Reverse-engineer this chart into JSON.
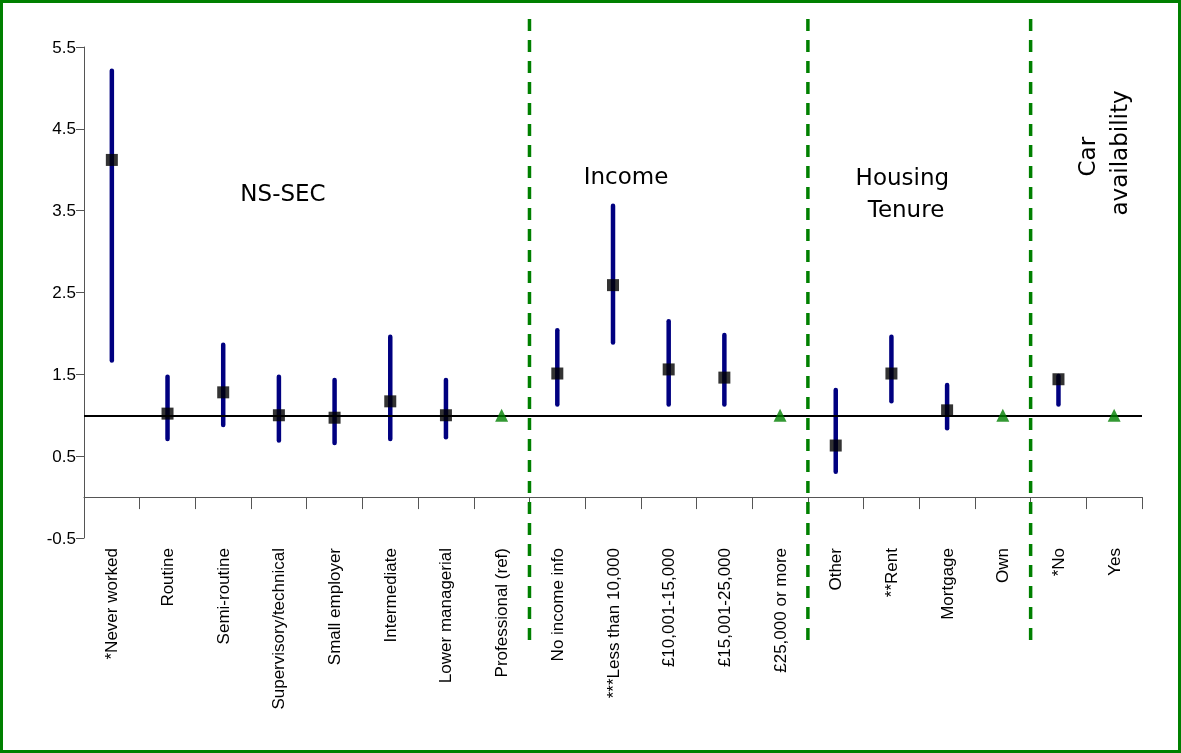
{
  "chart_data": {
    "type": "scatter",
    "categories": [
      "*Never worked",
      "Routine",
      "Semi-routine",
      "Supervisory/technical",
      "Small employer",
      "Intermediate",
      "Lower managerial",
      "Professional (ref)",
      "No income info",
      "***Less than 10,000",
      "£10,001-15,000",
      "£15,001-25,000",
      "£25,000 or more",
      "Other",
      "**Rent",
      "Mortgage",
      "Own",
      "*No",
      "Yes"
    ],
    "series": [
      {
        "color": "#000000",
        "marker": "square",
        "values": [
          4.12,
          1.02,
          1.28,
          1.0,
          0.97,
          1.17,
          1.0,
          null,
          1.51,
          2.59,
          1.56,
          1.46,
          null,
          0.63,
          1.51,
          1.06,
          null,
          1.44,
          null
        ],
        "errors": [
          [
            1.67,
            5.21
          ],
          [
            0.71,
            1.47
          ],
          [
            0.88,
            1.86
          ],
          [
            0.69,
            1.47
          ],
          [
            0.66,
            1.43
          ],
          [
            0.71,
            1.96
          ],
          [
            0.73,
            1.43
          ],
          null,
          [
            1.13,
            2.04
          ],
          [
            1.89,
            3.56
          ],
          [
            1.13,
            2.15
          ],
          [
            1.13,
            1.98
          ],
          null,
          [
            0.31,
            1.31
          ],
          [
            1.17,
            1.96
          ],
          [
            0.84,
            1.37
          ],
          null,
          [
            1.13,
            1.48
          ],
          null
        ]
      },
      {
        "color": "#008000",
        "marker": "triangle",
        "values": [
          null,
          null,
          null,
          null,
          null,
          null,
          null,
          1.0,
          null,
          null,
          null,
          null,
          1.0,
          null,
          null,
          null,
          1.0,
          null,
          1.0
        ]
      }
    ],
    "ylim": [
      -0.5,
      5.5
    ],
    "yticks": [
      -0.5,
      0.5,
      1.5,
      2.5,
      3.5,
      4.5,
      5.5
    ],
    "grid": false,
    "ref_lines": [
      {
        "axis": "y",
        "value": 1,
        "color": "#000000",
        "line_style": "solid"
      }
    ],
    "annotations": [
      "NS-SEC",
      "Income",
      "Housing Tenure",
      "Car availability"
    ]
  }
}
